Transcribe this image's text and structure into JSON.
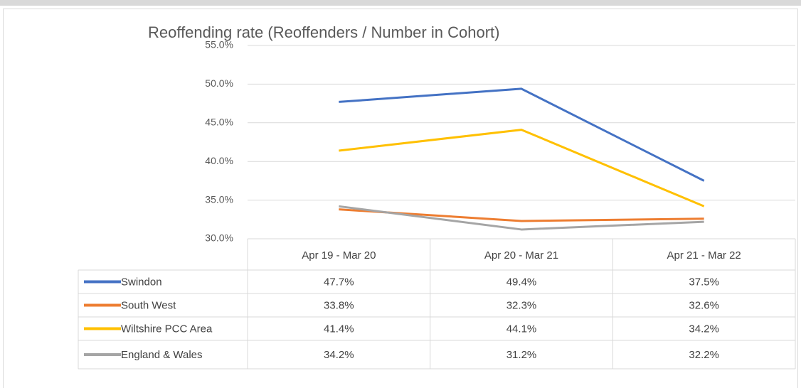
{
  "chart_data": {
    "type": "line",
    "title": "Reoffending rate (Reoffenders / Number in Cohort)",
    "categories": [
      "Apr 19 - Mar 20",
      "Apr 20 - Mar 21",
      "Apr 21 - Mar 22"
    ],
    "series": [
      {
        "name": "Swindon",
        "color": "#4472c4",
        "values": [
          47.7,
          49.4,
          37.5
        ],
        "value_labels": [
          "47.7%",
          "49.4%",
          "37.5%"
        ]
      },
      {
        "name": "South West",
        "color": "#ed7d31",
        "values": [
          33.8,
          32.3,
          32.6
        ],
        "value_labels": [
          "33.8%",
          "32.3%",
          "32.6%"
        ]
      },
      {
        "name": "Wiltshire PCC Area",
        "color": "#ffc000",
        "values": [
          41.4,
          44.1,
          34.2
        ],
        "value_labels": [
          "41.4%",
          "44.1%",
          "34.2%"
        ]
      },
      {
        "name": "England & Wales",
        "color": "#a5a5a5",
        "values": [
          34.2,
          31.2,
          32.2
        ],
        "value_labels": [
          "34.2%",
          "31.2%",
          "32.2%"
        ]
      }
    ],
    "ylim": [
      30,
      55
    ],
    "yticks": [
      {
        "value": 30,
        "label": "30.0%"
      },
      {
        "value": 35,
        "label": "35.0%"
      },
      {
        "value": 40,
        "label": "40.0%"
      },
      {
        "value": 45,
        "label": "45.0%"
      },
      {
        "value": 50,
        "label": "50.0%"
      },
      {
        "value": 55,
        "label": "55.0%"
      }
    ],
    "grid": true
  }
}
